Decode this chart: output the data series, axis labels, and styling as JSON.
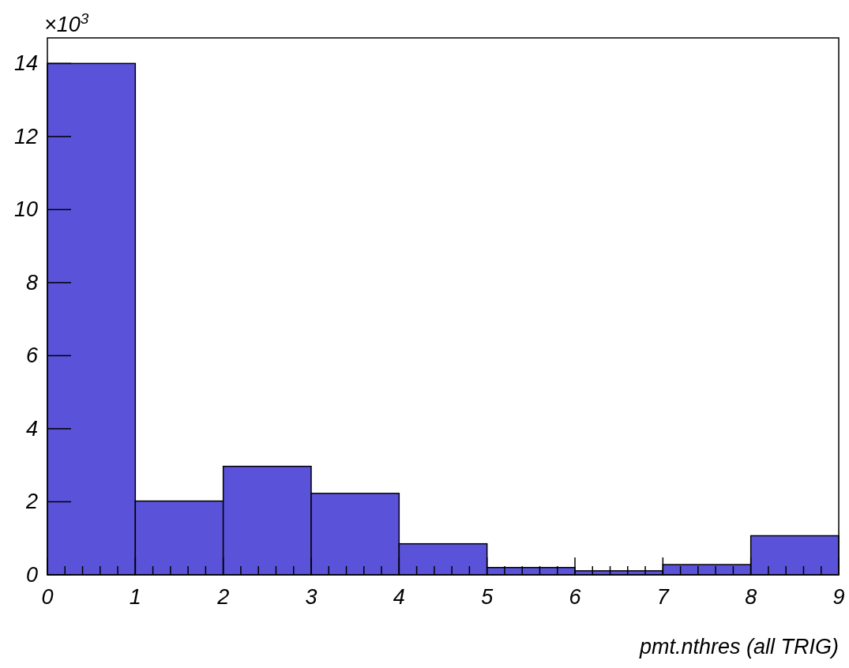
{
  "chart_data": {
    "type": "histogram",
    "xlabel": "pmt.nthres (all TRIG)",
    "annotations": [
      "×10$^{3}$"
    ],
    "bins": [
      0,
      1,
      2,
      3,
      4,
      5,
      6,
      7,
      8,
      9
    ],
    "values": [
      14,
      2.02,
      2.97,
      2.23,
      0.85,
      0.2,
      0.11,
      0.28,
      1.07
    ],
    "color": "#5a52d9",
    "xlim": [
      0,
      9
    ],
    "xticks": [
      0,
      1,
      2,
      3,
      4,
      5,
      6,
      7,
      8,
      9
    ],
    "ylim": [
      0,
      14.7
    ],
    "yticks": [
      0,
      2,
      4,
      6,
      8,
      10,
      12,
      14
    ],
    "grid": false
  }
}
